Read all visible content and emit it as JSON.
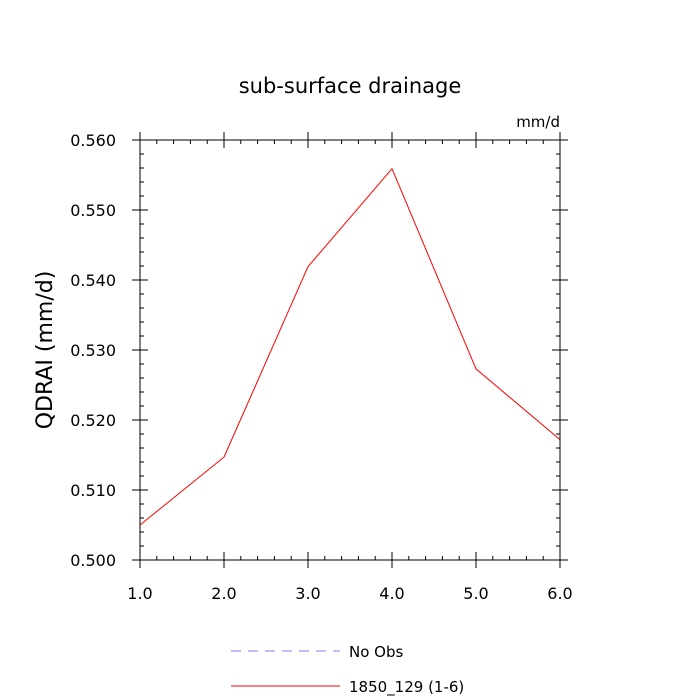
{
  "chart_data": {
    "type": "line",
    "title": "sub-surface drainage",
    "units_label": "mm/d",
    "xlabel": "",
    "ylabel": "QDRAI  (mm/d)",
    "xlim": [
      1.0,
      6.0
    ],
    "ylim": [
      0.5,
      0.56
    ],
    "x_ticks": [
      1.0,
      2.0,
      3.0,
      4.0,
      5.0,
      6.0
    ],
    "x_tick_labels": [
      "1.0",
      "2.0",
      "3.0",
      "4.0",
      "5.0",
      "6.0"
    ],
    "y_ticks": [
      0.5,
      0.51,
      0.52,
      0.53,
      0.54,
      0.55,
      0.56
    ],
    "y_tick_labels": [
      "0.500",
      "0.510",
      "0.520",
      "0.530",
      "0.540",
      "0.550",
      "0.560"
    ],
    "grid": false,
    "legend_position": "bottom-center",
    "series": [
      {
        "name": "No Obs",
        "color": "#8080ff",
        "dash": "dashed",
        "x": [],
        "values": []
      },
      {
        "name": "1850_129 (1-6)",
        "color": "#ff0000",
        "dash": "solid",
        "x": [
          1.0,
          2.0,
          3.0,
          4.0,
          5.0,
          6.0
        ],
        "values": [
          0.505,
          0.5147,
          0.5419,
          0.5559,
          0.5273,
          0.5172
        ]
      }
    ]
  }
}
